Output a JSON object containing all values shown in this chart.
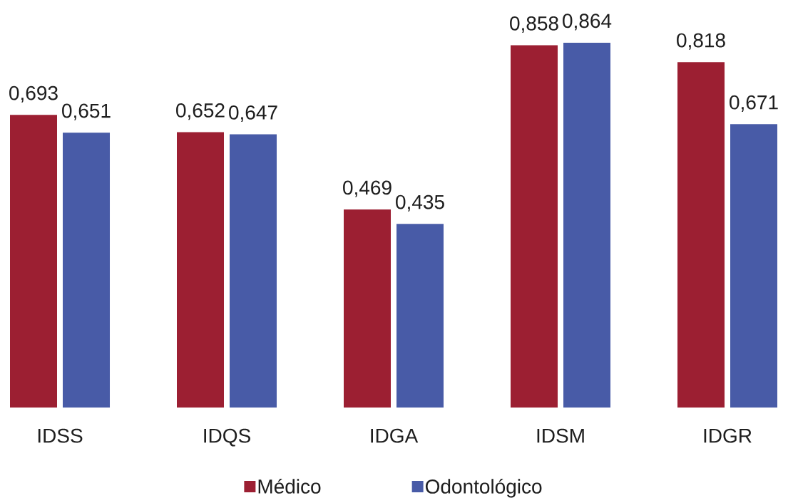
{
  "chart_data": {
    "type": "bar",
    "categories": [
      "IDSS",
      "IDQS",
      "IDGA",
      "IDSM",
      "IDGR"
    ],
    "series": [
      {
        "name": "Médico",
        "color": "#9c1f32",
        "values": [
          0.693,
          0.652,
          0.469,
          0.858,
          0.818
        ],
        "value_labels": [
          "0,693",
          "0,652",
          "0,469",
          "0,858",
          "0,818"
        ]
      },
      {
        "name": "Odontológico",
        "color": "#485ba7",
        "values": [
          0.651,
          0.647,
          0.435,
          0.864,
          0.671
        ],
        "value_labels": [
          "0,651",
          "0,647",
          "0,435",
          "0,864",
          "0,671"
        ]
      }
    ],
    "legend": "bottom"
  }
}
